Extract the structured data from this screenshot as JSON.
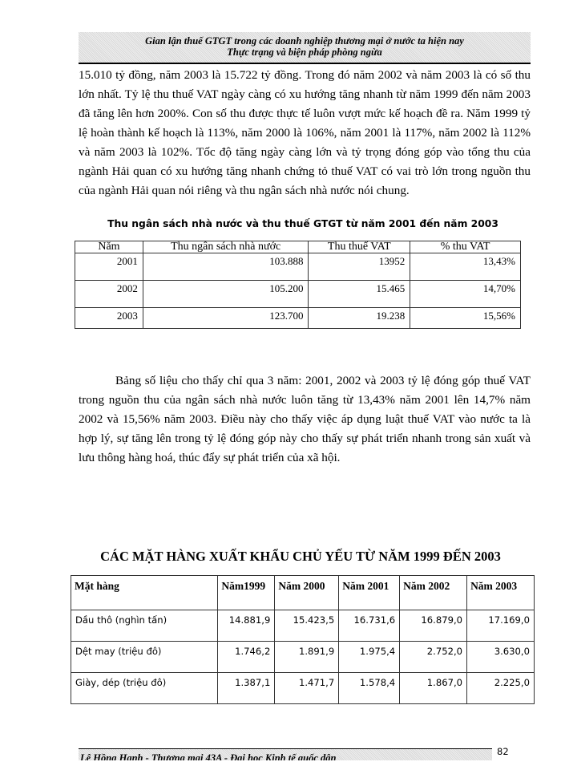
{
  "header": {
    "line1": "Gian lận thuế GTGT trong các doanh nghiệp thương mại ở nước ta hiện nay",
    "line2": "Thực trạng và biện pháp phòng ngừa"
  },
  "paragraph1": "15.010 tỷ đồng, năm 2003 là 15.722 tỷ đồng. Trong đó năm 2002 và năm 2003 là có số thu lớn nhất. Tỷ lệ thu thuế VAT ngày càng có xu hướng tăng nhanh từ năm 1999 đến năm 2003 đã tăng lên hơn 200%. Con số thu được thực tế luôn vượt mức kế hoạch đề ra. Năm 1999 tỷ lệ hoàn thành kế hoạch là 113%, năm 2000 là 106%, năm 2001 là 117%, năm 2002 là 112% và năm 2003 là 102%. Tốc độ tăng ngày càng lớn và tỷ trọng đóng góp vào tổng thu của ngành Hải quan có xu hướng tăng nhanh chứng tỏ thuế VAT có vai trò lớn trong nguồn thu của ngành Hải quan nói riêng và thu ngân sách nhà nước nói chung.",
  "table1": {
    "title": "Thu ngân sách nhà nước và thu thuế GTGT từ năm 2001 đến năm 2003",
    "headers": [
      "Năm",
      "Thu ngân sách nhà nước",
      "Thu thuế VAT",
      "% thu VAT"
    ],
    "rows": [
      [
        "2001",
        "103.888",
        "13952",
        "13,43%"
      ],
      [
        "2002",
        "105.200",
        "15.465",
        "14,70%"
      ],
      [
        "2003",
        "123.700",
        "19.238",
        "15,56%"
      ]
    ]
  },
  "paragraph2": "Bảng số liệu cho thấy chỉ qua 3 năm: 2001, 2002 và 2003 tỷ lệ đóng góp thuế VAT trong nguồn thu của ngân sách nhà nước luôn tăng từ 13,43% năm 2001 lên 14,7% năm 2002 và 15,56% năm 2003. Điều này cho thấy việc áp dụng luật thuế VAT vào nước ta là hợp lý, sự tăng lên trong tỷ lệ đóng góp này cho thấy sự phát triển nhanh trong sản xuất và lưu thông hàng hoá, thúc đẩy sự phát triển của xã hội.",
  "table2": {
    "title": "CÁC MẶT HÀNG XUẤT KHẨU CHỦ YẾU TỪ NĂM 1999 ĐẾN 2003",
    "headers": [
      "Mặt hàng",
      "Năm1999",
      "Năm 2000",
      "Năm 2001",
      "Năm 2002",
      "Năm 2003"
    ],
    "rows": [
      [
        "Dầu thô (nghìn tấn)",
        "14.881,9",
        "15.423,5",
        "16.731,6",
        "16.879,0",
        "17.169,0"
      ],
      [
        "Dệt may (triệu đô)",
        "1.746,2",
        "1.891,9",
        "1.975,4",
        "2.752,0",
        "3.630,0"
      ],
      [
        "Giày, dép (triệu đô)",
        "1.387,1",
        "1.471,7",
        "1.578,4",
        "1.867,0",
        "2.225,0"
      ]
    ]
  },
  "footer": {
    "text": "Lê Hồng Hạnh - Thương mại 43A - Đại học Kinh tế quốc dân",
    "page_number": "82"
  }
}
